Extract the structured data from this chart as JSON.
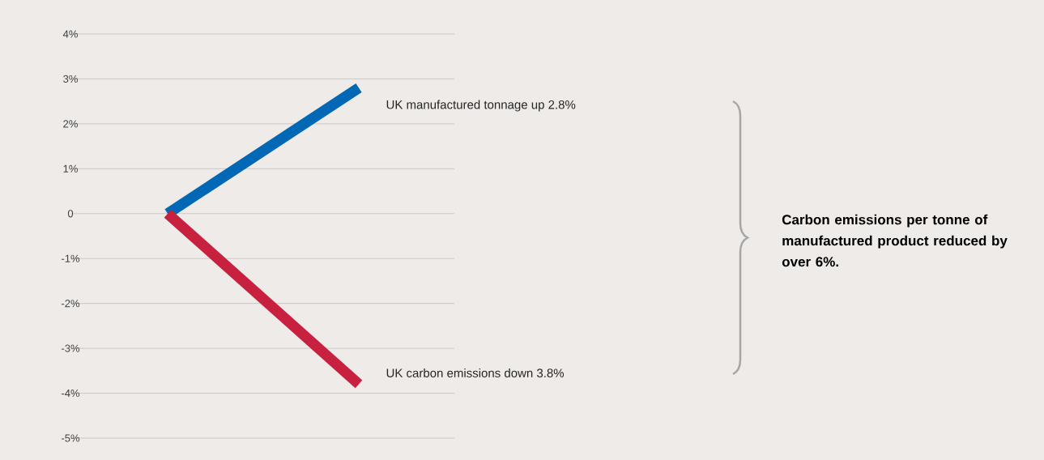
{
  "chart_data": {
    "type": "line",
    "categories": [
      null,
      null
    ],
    "series": [
      {
        "color": "#0068b4",
        "values": [
          0,
          2.8
        ]
      },
      {
        "color": "#c8213f",
        "values": [
          0,
          -3.8
        ]
      }
    ],
    "ylim": [
      -5,
      4
    ],
    "yticks": [
      {
        "value": -5,
        "label": "-5%"
      },
      {
        "value": -4,
        "label": "-4%"
      },
      {
        "value": -3,
        "label": "-3%"
      },
      {
        "value": -2,
        "label": "-2%"
      },
      {
        "value": -1,
        "label": "-1%"
      },
      0,
      {
        "value": 1,
        "label": "1%"
      },
      {
        "value": 2,
        "label": "2%"
      },
      {
        "value": 3,
        "label": "3%"
      },
      {
        "value": 4,
        "label": "4%"
      }
    ],
    "grid": "y",
    "annotations": [
      "UK manufactured tonnage up 2.8%",
      "UK carbon emissions down 3.8%",
      "Carbon emissions per tonne of manufactured product reduced by over 6%."
    ]
  }
}
